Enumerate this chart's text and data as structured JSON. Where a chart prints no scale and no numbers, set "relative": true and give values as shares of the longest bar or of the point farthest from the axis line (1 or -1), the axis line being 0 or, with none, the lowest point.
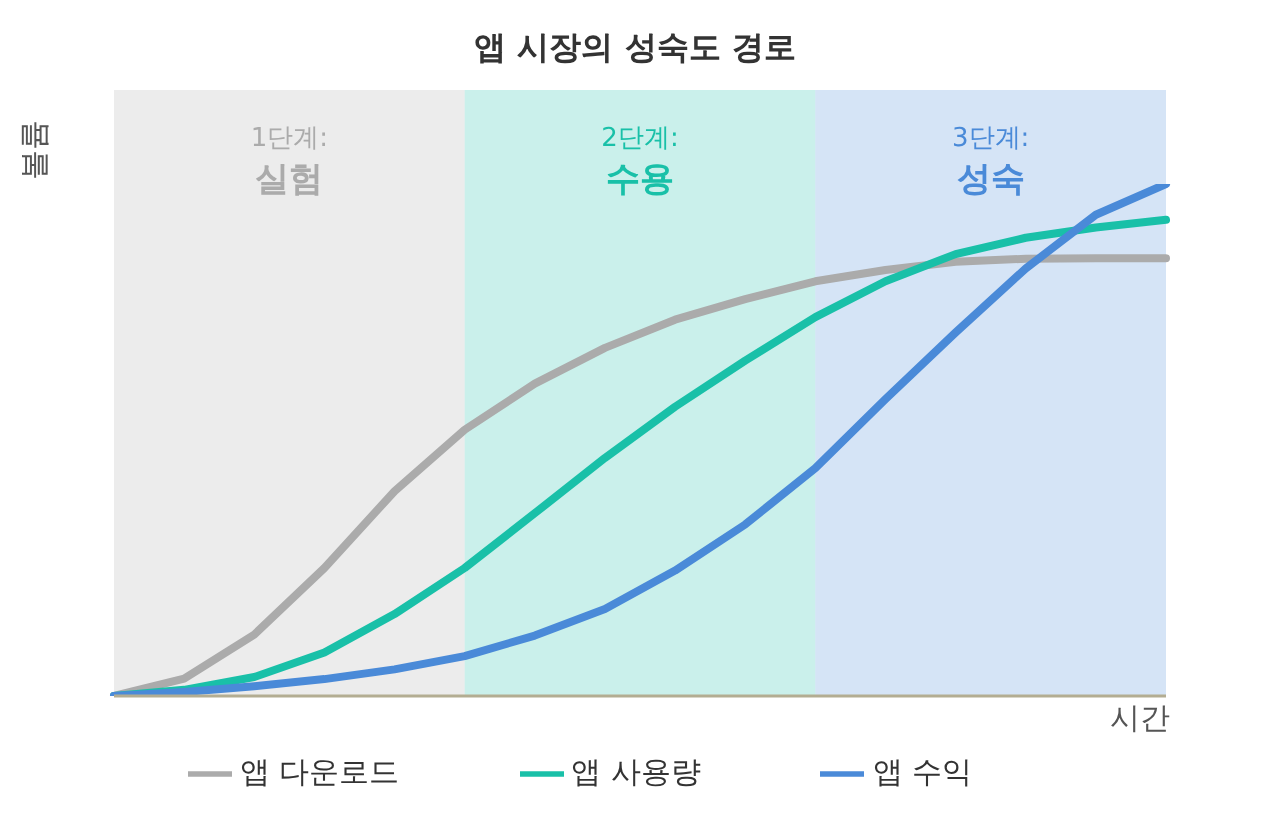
{
  "chart_data": {
    "type": "line",
    "title": "앱 시장의 성숙도 경로",
    "xlabel": "시간",
    "ylabel": "볼륨",
    "relative": true,
    "legend": "bottom",
    "marker": "none",
    "line_style": "solid",
    "grid": false,
    "categories": [
      null,
      null,
      null,
      null,
      null,
      null,
      null,
      null,
      null,
      null,
      null,
      null,
      null,
      null,
      null,
      null
    ],
    "series": [
      {
        "name": "앱 다운로드",
        "color": "#ababab",
        "values": [
          0,
          0.034,
          0.12,
          0.25,
          0.4,
          0.52,
          0.61,
          0.68,
          0.735,
          0.775,
          0.81,
          0.832,
          0.848,
          0.854,
          0.855,
          0.855
        ]
      },
      {
        "name": "앱 사용량",
        "color": "#19c0a8",
        "values": [
          0,
          0.012,
          0.037,
          0.085,
          0.16,
          0.25,
          0.357,
          0.465,
          0.565,
          0.655,
          0.74,
          0.81,
          0.863,
          0.895,
          0.915,
          0.93
        ]
      },
      {
        "name": "앱 수익",
        "color": "#4a8ad8",
        "values": [
          0,
          0.008,
          0.019,
          0.033,
          0.052,
          0.078,
          0.118,
          0.17,
          0.245,
          0.335,
          0.445,
          0.58,
          0.71,
          0.835,
          0.94,
          1
        ]
      }
    ],
    "annotations": [
      "1단계:\n실험",
      "2단계:\n수용",
      "3단계:\n성숙"
    ]
  }
}
